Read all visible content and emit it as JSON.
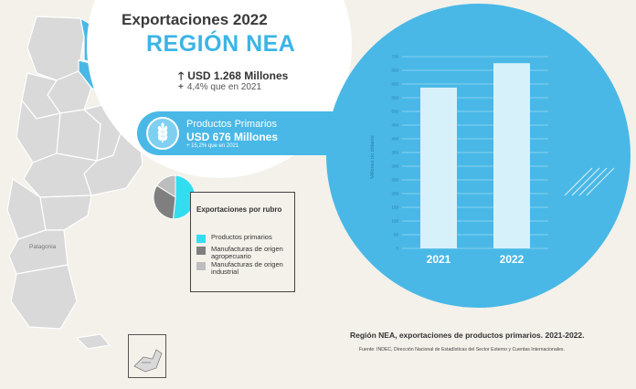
{
  "header": {
    "title": "Exportaciones 2022",
    "region": "REGIÓN NEA",
    "total_value": "USD 1.268 Millones",
    "total_change": "4,4% que en 2021",
    "up_arrow_icon": "arrow-up-icon",
    "plus_icon": "plus-icon"
  },
  "highlight": {
    "label": "Productos Primarios",
    "value": "USD 676 Millones",
    "change": "+ 15,2% que en 2021",
    "icon": "wheat-icon"
  },
  "map": {
    "labels": [
      "Patagonia"
    ]
  },
  "pie": {
    "title": "Exportaciones por rubro",
    "legend": [
      {
        "label": "Productos primarios",
        "color": "#33ddf0"
      },
      {
        "label": "Manufacturas de origen agropecuario",
        "color": "#7f7f7f"
      },
      {
        "label": "Manufacturas de origen industrial",
        "color": "#bdbdbd"
      }
    ]
  },
  "chart_data": {
    "type": "bar",
    "categories": [
      "2021",
      "2022"
    ],
    "values": [
      587,
      676
    ],
    "ylabel": "Millones de dólares",
    "ylim": [
      0,
      700
    ],
    "yticks": [
      0,
      50,
      100,
      150,
      200,
      250,
      300,
      350,
      400,
      450,
      500,
      550,
      600,
      650,
      700
    ],
    "grid": true,
    "bar_color": "#d7f1fb",
    "axis_color": "#ffffff"
  },
  "footer": {
    "caption": "Región NEA, exportaciones de productos primarios. 2021-2022.",
    "source": "Fuente: INDEC, Dirección Nacional de Estadísticas del Sector Externo y Cuentas Internacionales."
  }
}
